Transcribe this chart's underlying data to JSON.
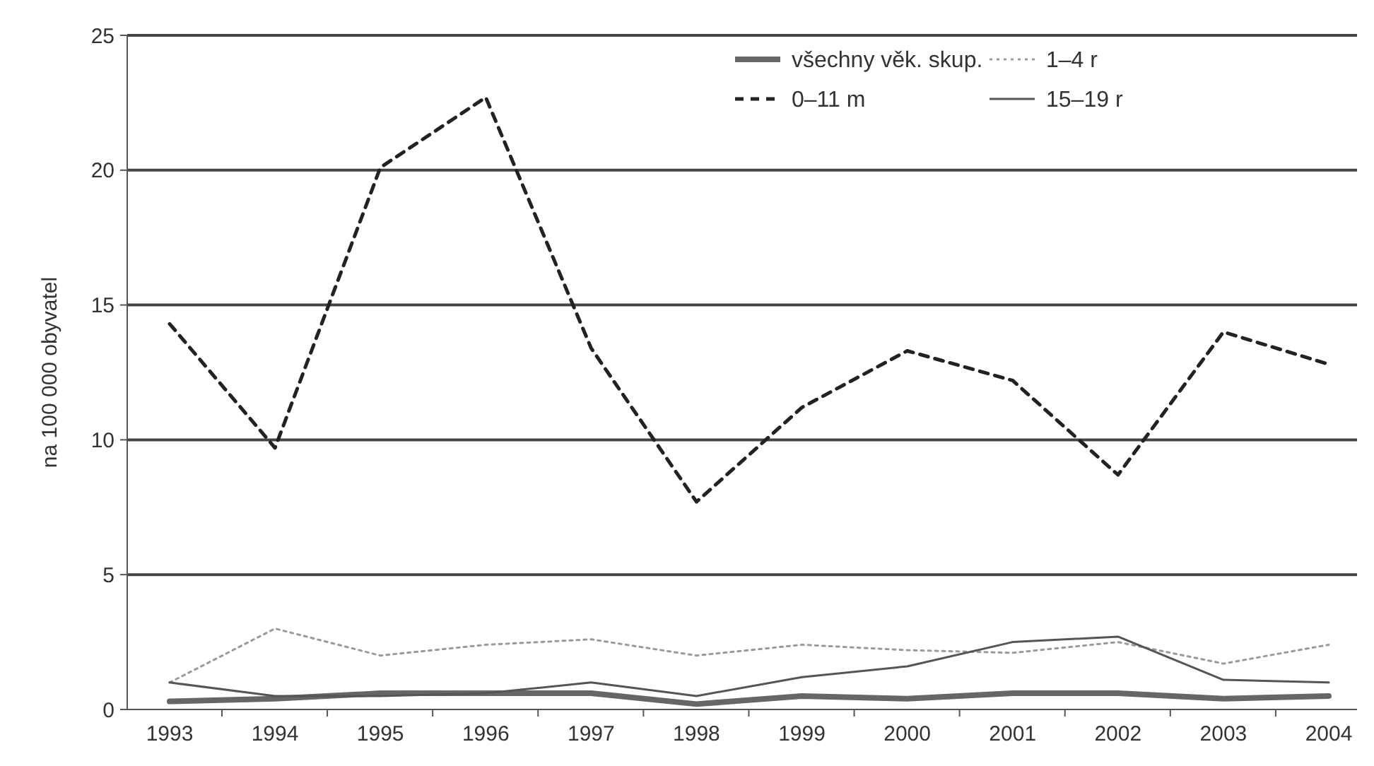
{
  "chart_data": {
    "type": "line",
    "ylabel": "na 100 000 obyvatel",
    "categories": [
      "1993",
      "1994",
      "1995",
      "1996",
      "1997",
      "1998",
      "1999",
      "2000",
      "2001",
      "2002",
      "2003",
      "2004"
    ],
    "ylim": [
      0,
      25
    ],
    "yticks": [
      0,
      5,
      10,
      15,
      20,
      25
    ],
    "grid": "y",
    "legend": "top right",
    "marker": "none",
    "series": [
      {
        "name": "všechny věk. skup.",
        "color": "#666666",
        "line_style": "solid",
        "values": [
          0.3,
          0.4,
          0.6,
          0.6,
          0.6,
          0.2,
          0.5,
          0.4,
          0.6,
          0.6,
          0.4,
          0.5
        ]
      },
      {
        "name": "1–4 r",
        "color": "#9a9a9a",
        "line_style": "dotted",
        "values": [
          1.0,
          3.0,
          2.0,
          2.4,
          2.6,
          2.0,
          2.4,
          2.2,
          2.1,
          2.5,
          1.7,
          2.4
        ]
      },
      {
        "name": "0–11 m",
        "color": "#222222",
        "line_style": "dashed",
        "values": [
          14.3,
          9.7,
          20.1,
          22.7,
          13.4,
          7.7,
          11.2,
          13.3,
          12.2,
          8.7,
          14.0,
          12.8
        ]
      },
      {
        "name": "15–19 r",
        "color": "#555555",
        "line_style": "solid",
        "values": [
          1.0,
          0.5,
          0.5,
          0.6,
          1.0,
          0.5,
          1.2,
          1.6,
          2.5,
          2.7,
          1.1,
          1.0
        ]
      }
    ]
  }
}
